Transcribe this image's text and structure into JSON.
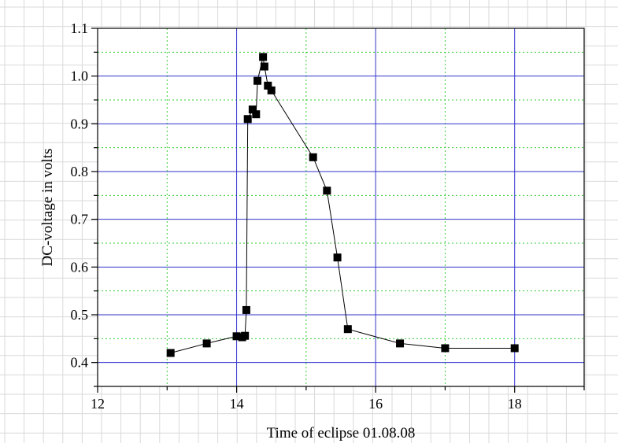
{
  "chart_data": {
    "type": "line",
    "xlabel": "Time of eclipse 01.08.08",
    "ylabel": "DC-voltage in volts",
    "xlim": [
      12,
      19
    ],
    "ylim": [
      0.35,
      1.1
    ],
    "x_ticks": [
      12,
      14,
      16,
      18
    ],
    "y_ticks": [
      0.4,
      0.5,
      0.6,
      0.7,
      0.8,
      0.9,
      1.0,
      1.1
    ],
    "x_tick_labels": [
      "12",
      "14",
      "16",
      "18"
    ],
    "y_tick_labels": [
      "0.4",
      "0.5",
      "0.6",
      "0.7",
      "0.8",
      "0.9",
      "1.0",
      "1.1"
    ],
    "grid": true,
    "marker": "square",
    "series": [
      {
        "points": [
          [
            13.05,
            0.42
          ],
          [
            13.57,
            0.44
          ],
          [
            14.0,
            0.455
          ],
          [
            14.08,
            0.453
          ],
          [
            14.12,
            0.456
          ],
          [
            14.14,
            0.51
          ],
          [
            14.16,
            0.91
          ],
          [
            14.23,
            0.93
          ],
          [
            14.28,
            0.92
          ],
          [
            14.3,
            0.99
          ],
          [
            14.38,
            1.04
          ],
          [
            14.4,
            1.02
          ],
          [
            14.45,
            0.98
          ],
          [
            14.5,
            0.97
          ],
          [
            15.1,
            0.83
          ],
          [
            15.3,
            0.76
          ],
          [
            15.45,
            0.62
          ],
          [
            15.6,
            0.47
          ],
          [
            16.35,
            0.44
          ],
          [
            17.0,
            0.43
          ],
          [
            18.0,
            0.43
          ]
        ]
      }
    ]
  },
  "colors": {
    "major_grid": "#3333cc",
    "minor_grid": "#33cc33",
    "background_grid": "#d9d9d9",
    "series": "#000000"
  }
}
